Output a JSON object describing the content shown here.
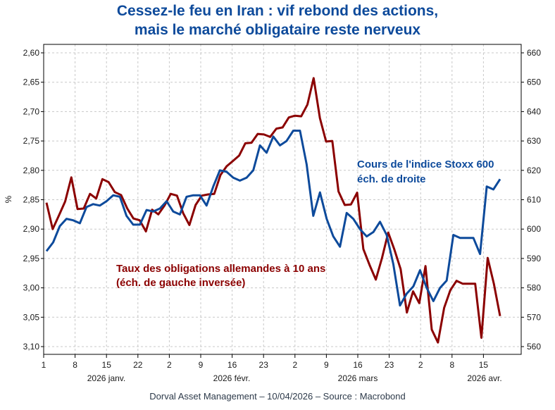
{
  "chart_data": {
    "type": "line",
    "title_lines": [
      "Cessez-le feu en Iran : vif rebond des actions,",
      "mais le marché obligataire reste nerveux"
    ],
    "ylabel_left": "%",
    "left_axis": {
      "ticks": [
        "2,60",
        "2,65",
        "2,70",
        "2,75",
        "2,80",
        "2,85",
        "2,90",
        "2,95",
        "3,00",
        "3,05",
        "3,10"
      ],
      "range": [
        2.6,
        3.1
      ],
      "inverted": true
    },
    "right_axis": {
      "ticks": [
        "660",
        "650",
        "640",
        "630",
        "620",
        "610",
        "600",
        "590",
        "580",
        "570",
        "560"
      ],
      "range": [
        560,
        660
      ]
    },
    "x_day_ticks": [
      "1",
      "8",
      "15",
      "22",
      "2",
      "9",
      "16",
      "23",
      "2",
      "9",
      "16",
      "23",
      "2",
      "8",
      "15"
    ],
    "x_month_labels": [
      "2026 janv.",
      "2026 févr.",
      "2026 mars",
      "2026 avr."
    ],
    "grid": true,
    "series": [
      {
        "name": "Cours de l'indice Stoxx 600",
        "axis": "right",
        "color": "#0d4a9b",
        "values": [
          592,
          595,
          600,
          603,
          603,
          602,
          607,
          608,
          608,
          610,
          610,
          609,
          604,
          601,
          601,
          606,
          606,
          607,
          609,
          606,
          605,
          609,
          609,
          611,
          606,
          613,
          613,
          613,
          614,
          610,
          612,
          614,
          615,
          616,
          616,
          618,
          618,
          616,
          617,
          617,
          619,
          619,
          624,
          624,
          620,
          632,
          628,
          631,
          630,
          633,
          633,
          612,
          592,
          611,
          607,
          601,
          607,
          602,
          602,
          603,
          598,
          596,
          600,
          603,
          603,
          602,
          599,
          597,
          594,
          593,
          599,
          597,
          591,
          594,
          602,
          613,
          614,
          619,
          616,
          619,
          609,
          607,
          600,
          595,
          600,
          604,
          600,
          592,
          601,
          601,
          600,
          587,
          585,
          582,
          573,
          578,
          578,
          583,
          588,
          583,
          579,
          572,
          581,
          584,
          585,
          590,
          590,
          596,
          594,
          594,
          596,
          596,
          596,
          590,
          603,
          583,
          589,
          616,
          615,
          617
        ],
        "daily_points": [
          {
            "i": 0,
            "v": 592.5
          },
          {
            "i": 1,
            "v": 595.5
          },
          {
            "i": 2,
            "v": 601
          },
          {
            "i": 3,
            "v": 603.5
          },
          {
            "i": 4,
            "v": 603
          },
          {
            "i": 5,
            "v": 602
          },
          {
            "i": 6,
            "v": 607.5
          },
          {
            "i": 7,
            "v": 608.5
          },
          {
            "i": 8,
            "v": 608
          },
          {
            "i": 9,
            "v": 609.5
          },
          {
            "i": 10,
            "v": 611.5
          },
          {
            "i": 11,
            "v": 611
          },
          {
            "i": 12,
            "v": 604.5
          },
          {
            "i": 13,
            "v": 601.5
          },
          {
            "i": 14,
            "v": 601.5
          },
          {
            "i": 15,
            "v": 606.5
          },
          {
            "i": 16,
            "v": 606
          },
          {
            "i": 17,
            "v": 607
          },
          {
            "i": 18,
            "v": 609.5
          },
          {
            "i": 19,
            "v": 606
          },
          {
            "i": 20,
            "v": 605
          },
          {
            "i": 21,
            "v": 611
          },
          {
            "i": 22,
            "v": 611.5
          },
          {
            "i": 23,
            "v": 611.5
          },
          {
            "i": 24,
            "v": 608
          },
          {
            "i": 25,
            "v": 614.5
          },
          {
            "i": 26,
            "v": 620
          },
          {
            "i": 27,
            "v": 619.5
          },
          {
            "i": 28,
            "v": 617.5
          },
          {
            "i": 29,
            "v": 616.5
          },
          {
            "i": 30,
            "v": 617.5
          },
          {
            "i": 31,
            "v": 620
          },
          {
            "i": 32,
            "v": 628.5
          },
          {
            "i": 33,
            "v": 626
          },
          {
            "i": 34,
            "v": 631.5
          },
          {
            "i": 35,
            "v": 628.5
          },
          {
            "i": 36,
            "v": 630
          },
          {
            "i": 37,
            "v": 633.5
          },
          {
            "i": 38,
            "v": 633.5
          },
          {
            "i": 39,
            "v": 622
          },
          {
            "i": 40,
            "v": 604.5
          },
          {
            "i": 41,
            "v": 612.5
          },
          {
            "i": 42,
            "v": 603.5
          },
          {
            "i": 43,
            "v": 597.5
          },
          {
            "i": 44,
            "v": 594
          },
          {
            "i": 45,
            "v": 605.5
          },
          {
            "i": 46,
            "v": 603.5
          },
          {
            "i": 47,
            "v": 600
          },
          {
            "i": 48,
            "v": 597.5
          },
          {
            "i": 49,
            "v": 599
          },
          {
            "i": 50,
            "v": 602.5
          },
          {
            "i": 51,
            "v": 598
          },
          {
            "i": 52,
            "v": 588
          },
          {
            "i": 53,
            "v": 574
          },
          {
            "i": 54,
            "v": 578
          },
          {
            "i": 55,
            "v": 580.5
          },
          {
            "i": 56,
            "v": 586
          },
          {
            "i": 57,
            "v": 580
          },
          {
            "i": 58,
            "v": 575.5
          },
          {
            "i": 59,
            "v": 580
          },
          {
            "i": 60,
            "v": 582.5
          },
          {
            "i": 61,
            "v": 598
          },
          {
            "i": 62,
            "v": 597
          },
          {
            "i": 63,
            "v": 597
          },
          {
            "i": 64,
            "v": 597
          },
          {
            "i": 65,
            "v": 591.5
          },
          {
            "i": 66,
            "v": 614.5
          },
          {
            "i": 67,
            "v": 613.5
          },
          {
            "i": 68,
            "v": 617
          }
        ]
      },
      {
        "name": "Taux des obligations allemandes à 10 ans (éch. de gauche inversée)",
        "axis": "left",
        "color": "#8b0000",
        "daily_points": [
          {
            "i": 0,
            "v": 2.855
          },
          {
            "i": 1,
            "v": 2.9
          },
          {
            "i": 2,
            "v": 2.877
          },
          {
            "i": 3,
            "v": 2.853
          },
          {
            "i": 4,
            "v": 2.812
          },
          {
            "i": 5,
            "v": 2.866
          },
          {
            "i": 6,
            "v": 2.865
          },
          {
            "i": 7,
            "v": 2.84
          },
          {
            "i": 8,
            "v": 2.848
          },
          {
            "i": 9,
            "v": 2.815
          },
          {
            "i": 10,
            "v": 2.82
          },
          {
            "i": 11,
            "v": 2.837
          },
          {
            "i": 12,
            "v": 2.842
          },
          {
            "i": 13,
            "v": 2.865
          },
          {
            "i": 14,
            "v": 2.882
          },
          {
            "i": 15,
            "v": 2.885
          },
          {
            "i": 16,
            "v": 2.904
          },
          {
            "i": 17,
            "v": 2.867
          },
          {
            "i": 18,
            "v": 2.875
          },
          {
            "i": 19,
            "v": 2.86
          },
          {
            "i": 20,
            "v": 2.84
          },
          {
            "i": 21,
            "v": 2.843
          },
          {
            "i": 22,
            "v": 2.873
          },
          {
            "i": 23,
            "v": 2.893
          },
          {
            "i": 24,
            "v": 2.859
          },
          {
            "i": 25,
            "v": 2.843
          },
          {
            "i": 26,
            "v": 2.841
          },
          {
            "i": 27,
            "v": 2.84
          },
          {
            "i": 28,
            "v": 2.808
          },
          {
            "i": 29,
            "v": 2.793
          },
          {
            "i": 30,
            "v": 2.784
          },
          {
            "i": 31,
            "v": 2.775
          },
          {
            "i": 32,
            "v": 2.754
          },
          {
            "i": 33,
            "v": 2.753
          },
          {
            "i": 34,
            "v": 2.738
          },
          {
            "i": 35,
            "v": 2.739
          },
          {
            "i": 36,
            "v": 2.743
          },
          {
            "i": 37,
            "v": 2.729
          },
          {
            "i": 38,
            "v": 2.727
          },
          {
            "i": 39,
            "v": 2.71
          },
          {
            "i": 40,
            "v": 2.707
          },
          {
            "i": 41,
            "v": 2.708
          },
          {
            "i": 42,
            "v": 2.688
          },
          {
            "i": 43,
            "v": 2.643
          },
          {
            "i": 44,
            "v": 2.711
          },
          {
            "i": 45,
            "v": 2.751
          },
          {
            "i": 46,
            "v": 2.75
          },
          {
            "i": 47,
            "v": 2.836
          },
          {
            "i": 48,
            "v": 2.859
          },
          {
            "i": 49,
            "v": 2.858
          },
          {
            "i": 50,
            "v": 2.838
          },
          {
            "i": 51,
            "v": 2.934
          },
          {
            "i": 52,
            "v": 2.961
          },
          {
            "i": 53,
            "v": 2.986
          },
          {
            "i": 54,
            "v": 2.949
          },
          {
            "i": 55,
            "v": 2.906
          },
          {
            "i": 56,
            "v": 2.935
          },
          {
            "i": 57,
            "v": 2.968
          },
          {
            "i": 58,
            "v": 3.042
          },
          {
            "i": 59,
            "v": 3.006
          },
          {
            "i": 60,
            "v": 3.026
          },
          {
            "i": 61,
            "v": 2.963
          },
          {
            "i": 62,
            "v": 3.071
          },
          {
            "i": 63,
            "v": 3.093
          },
          {
            "i": 64,
            "v": 3.034
          },
          {
            "i": 65,
            "v": 3.004
          },
          {
            "i": 66,
            "v": 2.988
          },
          {
            "i": 67,
            "v": 2.993
          },
          {
            "i": 68,
            "v": 2.993
          },
          {
            "i": 69,
            "v": 2.993
          },
          {
            "i": 70,
            "v": 3.085
          },
          {
            "i": 71,
            "v": 2.949
          },
          {
            "i": 72,
            "v": 2.993
          },
          {
            "i": 73,
            "v": 3.048
          }
        ]
      }
    ],
    "annotations": {
      "blue_line1": "Cours de l'indice Stoxx 600",
      "blue_line2": "éch. de droite",
      "red_line1": "Taux des obligations allemandes à 10 ans",
      "red_line2": "(éch. de gauche inversée)"
    }
  },
  "footer": "Dorval Asset Management – 10/04/2026  –   Source : Macrobond",
  "colors": {
    "blue": "#0d4a9b",
    "red": "#8b0000",
    "grid": "#c8c8c8"
  }
}
